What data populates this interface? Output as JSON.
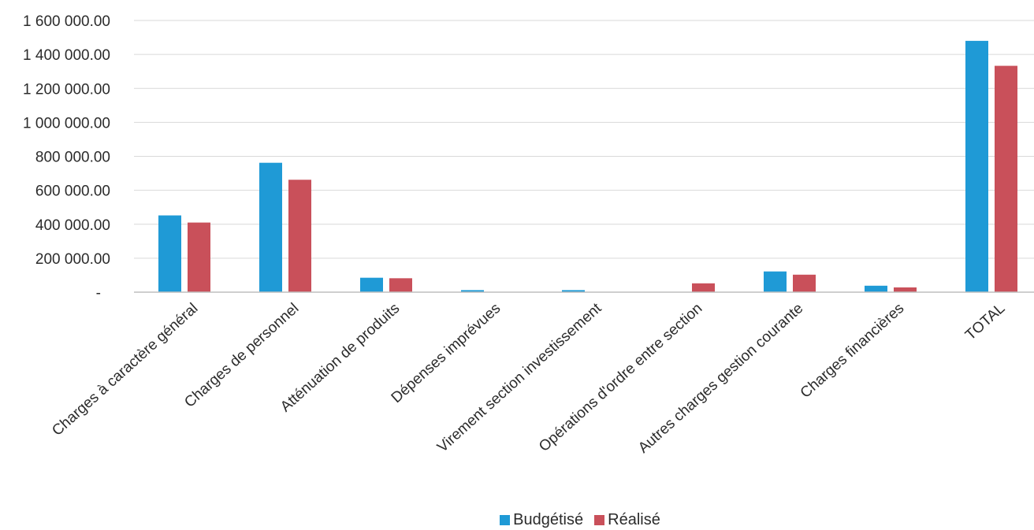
{
  "chart_data": {
    "type": "bar",
    "title": "",
    "xlabel": "",
    "ylabel": "",
    "categories": [
      "Charges à caractère général",
      "Charges de personnel",
      "Atténuation de produits",
      "Dépenses imprévues",
      "Virement section investissement",
      "Opérations d'ordre entre section",
      "Autres charges gestion courante",
      "Charges financières",
      "TOTAL"
    ],
    "series": [
      {
        "name": "Budgétisé",
        "color": "#1f9ad6",
        "values": [
          452000,
          762000,
          85000,
          12000,
          12000,
          0,
          122000,
          38000,
          1480000
        ]
      },
      {
        "name": "Réalisé",
        "color": "#c9505a",
        "values": [
          410000,
          662000,
          82000,
          0,
          0,
          52000,
          103000,
          28000,
          1333000
        ]
      }
    ],
    "ylim": [
      0,
      1600000
    ],
    "yticks": [
      {
        "value": 0,
        "label": "-"
      },
      {
        "value": 200000,
        "label": "200 000.00"
      },
      {
        "value": 400000,
        "label": "400 000.00"
      },
      {
        "value": 600000,
        "label": "600 000.00"
      },
      {
        "value": 800000,
        "label": "800 000.00"
      },
      {
        "value": 1000000,
        "label": "1 000 000.00"
      },
      {
        "value": 1200000,
        "label": "1 200 000.00"
      },
      {
        "value": 1400000,
        "label": "1 400 000.00"
      },
      {
        "value": 1600000,
        "label": "1 600 000.00"
      }
    ],
    "grid": true,
    "legend_position": "bottom"
  }
}
